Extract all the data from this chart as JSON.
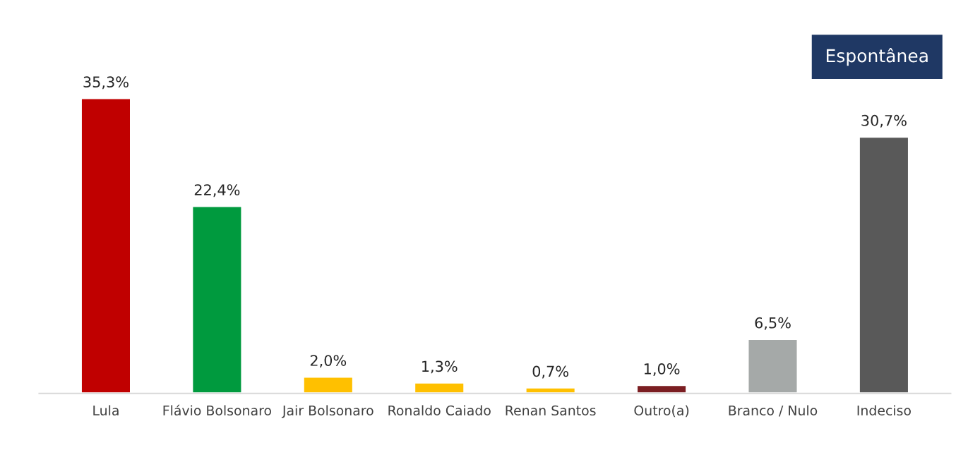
{
  "chart_data": {
    "type": "bar",
    "categories": [
      "Lula",
      "Flávio Bolsonaro",
      "Jair Bolsonaro",
      "Ronaldo Caiado",
      "Renan Santos",
      "Outro(a)",
      "Branco / Nulo",
      "Indeciso"
    ],
    "values": [
      35.3,
      22.4,
      2.0,
      1.3,
      0.7,
      1.0,
      6.5,
      30.7
    ],
    "colors": [
      "#c00000",
      "#009a3e",
      "#ffc000",
      "#ffc000",
      "#ffc000",
      "#7b1e22",
      "#a5a9a8",
      "#595959"
    ],
    "value_labels": [
      "35,3%",
      "22,4%",
      "2,0%",
      "1,3%",
      "0,7%",
      "1,0%",
      "6,5%",
      "30,7%"
    ],
    "annotations": [
      "Espontânea"
    ],
    "grid": false,
    "legend": false
  }
}
